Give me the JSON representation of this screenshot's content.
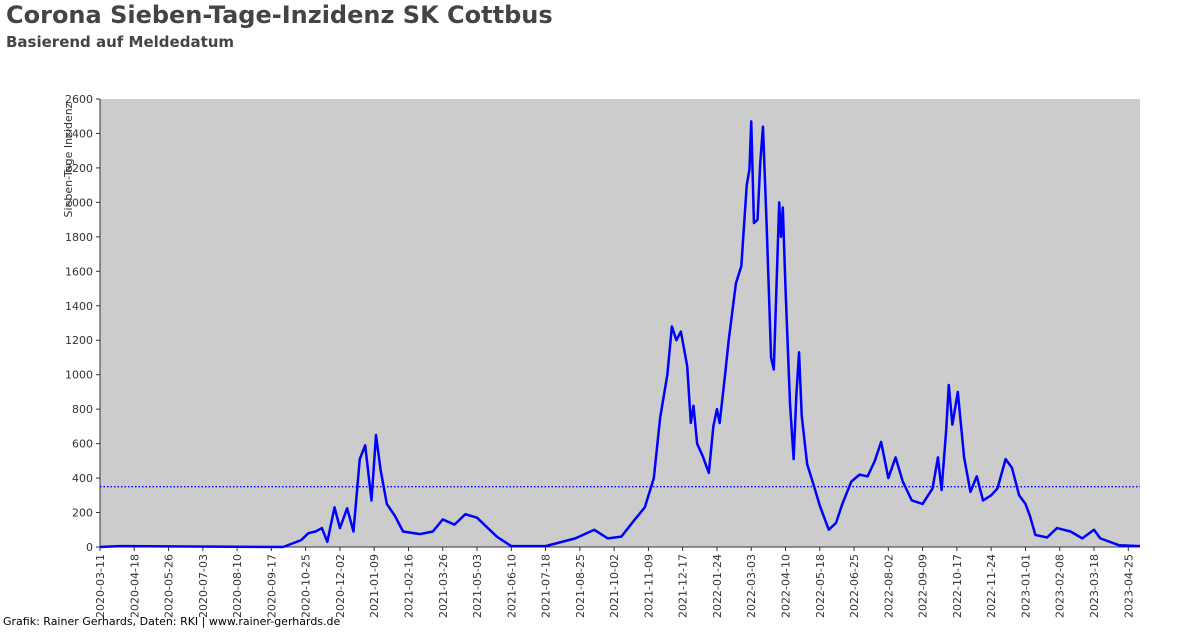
{
  "chart_data": {
    "type": "line",
    "title": "Corona Sieben-Tage-Inzidenz SK Cottbus",
    "subtitle": "Basierend auf Meldedatum",
    "ylabel": "Sieben-Tage Inzidenz",
    "footer": "Grafik: Rainer Gerhards, Daten: RKI | www.rainer-gerhards.de",
    "background": "#cccccc",
    "ylim": [
      0,
      2600
    ],
    "yticks": [
      0,
      200,
      400,
      600,
      800,
      1000,
      1200,
      1400,
      1600,
      1800,
      2000,
      2200,
      2400,
      2600
    ],
    "xlim": [
      "2020-03-11",
      "2023-05-08"
    ],
    "xticks": [
      "2020-03-11",
      "2020-04-18",
      "2020-05-26",
      "2020-07-03",
      "2020-08-10",
      "2020-09-17",
      "2020-10-25",
      "2020-12-02",
      "2021-01-09",
      "2021-02-16",
      "2021-03-26",
      "2021-05-03",
      "2021-06-10",
      "2021-07-18",
      "2021-08-25",
      "2021-10-02",
      "2021-11-09",
      "2021-12-17",
      "2022-01-24",
      "2022-03-03",
      "2022-04-10",
      "2022-05-18",
      "2022-06-25",
      "2022-08-02",
      "2022-09-09",
      "2022-10-17",
      "2022-11-24",
      "2023-01-01",
      "2023-02-08",
      "2023-03-18",
      "2023-04-25"
    ],
    "reference_line": {
      "value": 350,
      "color": "#0000ff"
    },
    "x": [
      "2020-03-11",
      "2020-04-01",
      "2020-09-30",
      "2020-10-20",
      "2020-10-28",
      "2020-11-05",
      "2020-11-12",
      "2020-11-18",
      "2020-11-26",
      "2020-12-02",
      "2020-12-10",
      "2020-12-17",
      "2020-12-24",
      "2020-12-30",
      "2021-01-06",
      "2021-01-11",
      "2021-01-16",
      "2021-01-23",
      "2021-02-01",
      "2021-02-10",
      "2021-03-01",
      "2021-03-15",
      "2021-03-26",
      "2021-04-08",
      "2021-04-20",
      "2021-05-03",
      "2021-05-25",
      "2021-06-10",
      "2021-07-18",
      "2021-08-20",
      "2021-09-10",
      "2021-09-25",
      "2021-10-10",
      "2021-10-25",
      "2021-11-05",
      "2021-11-15",
      "2021-11-22",
      "2021-11-30",
      "2021-12-05",
      "2021-12-10",
      "2021-12-15",
      "2021-12-22",
      "2021-12-26",
      "2021-12-29",
      "2022-01-02",
      "2022-01-08",
      "2022-01-15",
      "2022-01-20",
      "2022-01-24",
      "2022-01-27",
      "2022-02-02",
      "2022-02-06",
      "2022-02-14",
      "2022-02-20",
      "2022-02-26",
      "2022-03-01",
      "2022-03-03",
      "2022-03-06",
      "2022-03-10",
      "2022-03-13",
      "2022-03-16",
      "2022-03-20",
      "2022-03-25",
      "2022-03-28",
      "2022-04-03",
      "2022-04-05",
      "2022-04-07",
      "2022-04-10",
      "2022-04-15",
      "2022-04-19",
      "2022-04-22",
      "2022-04-25",
      "2022-04-28",
      "2022-05-04",
      "2022-05-10",
      "2022-05-18",
      "2022-05-28",
      "2022-06-05",
      "2022-06-12",
      "2022-06-22",
      "2022-07-01",
      "2022-07-10",
      "2022-07-18",
      "2022-07-25",
      "2022-08-02",
      "2022-08-10",
      "2022-08-18",
      "2022-08-28",
      "2022-09-09",
      "2022-09-20",
      "2022-09-26",
      "2022-09-30",
      "2022-10-05",
      "2022-10-08",
      "2022-10-12",
      "2022-10-18",
      "2022-10-25",
      "2022-11-01",
      "2022-11-08",
      "2022-11-15",
      "2022-11-24",
      "2022-12-01",
      "2022-12-10",
      "2022-12-17",
      "2022-12-25",
      "2023-01-01",
      "2023-01-06",
      "2023-01-12",
      "2023-01-25",
      "2023-02-05",
      "2023-02-20",
      "2023-03-05",
      "2023-03-18",
      "2023-03-25",
      "2023-04-15",
      "2023-05-08"
    ],
    "series": [
      {
        "color": "#0000ff",
        "values": [
          0,
          5,
          0,
          40,
          80,
          90,
          110,
          30,
          230,
          110,
          225,
          90,
          510,
          590,
          270,
          650,
          450,
          250,
          180,
          90,
          75,
          90,
          160,
          130,
          190,
          170,
          60,
          5,
          5,
          50,
          100,
          50,
          60,
          160,
          230,
          400,
          750,
          1000,
          1280,
          1200,
          1250,
          1050,
          720,
          820,
          600,
          530,
          430,
          700,
          800,
          720,
          1000,
          1200,
          1530,
          1630,
          2100,
          2190,
          2470,
          1880,
          1900,
          2230,
          2440,
          1880,
          1100,
          1030,
          2000,
          1800,
          1970,
          1500,
          830,
          510,
          880,
          1130,
          760,
          480,
          380,
          240,
          100,
          140,
          250,
          380,
          420,
          410,
          500,
          610,
          400,
          520,
          380,
          270,
          250,
          340,
          520,
          330,
          670,
          940,
          710,
          900,
          520,
          320,
          410,
          270,
          300,
          340,
          510,
          460,
          300,
          250,
          180,
          70,
          55,
          110,
          90,
          50,
          100,
          50,
          10,
          5
        ]
      }
    ]
  }
}
